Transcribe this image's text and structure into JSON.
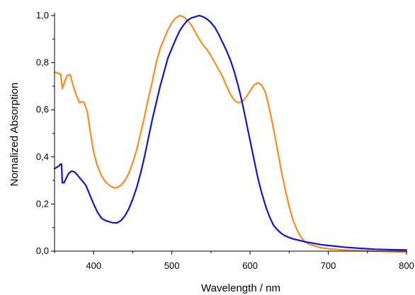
{
  "chart_data": {
    "type": "line",
    "title": "",
    "xlabel": "Wavelength / nm",
    "ylabel": "Nornalized Absorption",
    "xlim": [
      350,
      800
    ],
    "ylim": [
      0.0,
      1.0
    ],
    "x_ticks": [
      400,
      500,
      600,
      700,
      800
    ],
    "x_tick_labels": [
      "400",
      "500",
      "600",
      "700",
      "800"
    ],
    "y_ticks": [
      0.0,
      0.2,
      0.4,
      0.6,
      0.8,
      1.0
    ],
    "y_tick_labels": [
      "0,0",
      "0,2",
      "0,4",
      "0,6",
      "0,8",
      "1,0"
    ],
    "grid": false,
    "legend": "none",
    "series": [
      {
        "color": "#ff8c1a",
        "x": [
          350,
          355,
          358,
          360,
          363,
          366,
          370,
          374,
          378,
          382,
          385,
          388,
          392,
          396,
          400,
          405,
          410,
          415,
          420,
          425,
          430,
          435,
          440,
          445,
          450,
          455,
          460,
          465,
          470,
          475,
          480,
          485,
          490,
          495,
          500,
          505,
          510,
          515,
          520,
          525,
          530,
          535,
          540,
          545,
          550,
          555,
          560,
          565,
          570,
          575,
          580,
          585,
          590,
          595,
          600,
          605,
          610,
          615,
          620,
          625,
          630,
          635,
          640,
          645,
          650,
          655,
          660,
          665,
          670,
          675,
          680,
          685,
          690,
          700,
          720,
          740,
          760,
          780,
          800
        ],
        "y": [
          0.76,
          0.755,
          0.75,
          0.69,
          0.72,
          0.745,
          0.75,
          0.7,
          0.66,
          0.63,
          0.635,
          0.63,
          0.59,
          0.5,
          0.42,
          0.36,
          0.32,
          0.295,
          0.28,
          0.27,
          0.27,
          0.28,
          0.3,
          0.33,
          0.375,
          0.43,
          0.5,
          0.57,
          0.65,
          0.72,
          0.8,
          0.86,
          0.9,
          0.94,
          0.97,
          0.99,
          1.0,
          0.995,
          0.98,
          0.96,
          0.93,
          0.9,
          0.875,
          0.855,
          0.83,
          0.8,
          0.77,
          0.74,
          0.7,
          0.665,
          0.64,
          0.63,
          0.635,
          0.655,
          0.68,
          0.705,
          0.715,
          0.705,
          0.67,
          0.6,
          0.52,
          0.43,
          0.34,
          0.26,
          0.19,
          0.13,
          0.09,
          0.06,
          0.04,
          0.03,
          0.025,
          0.02,
          0.015,
          0.01,
          0.005,
          0.002,
          0.0,
          -0.002,
          -0.004
        ]
      },
      {
        "color": "#1414d2",
        "x": [
          350,
          355,
          358,
          359,
          360,
          362,
          365,
          368,
          372,
          376,
          380,
          385,
          390,
          395,
          400,
          405,
          410,
          415,
          420,
          425,
          430,
          435,
          440,
          445,
          450,
          455,
          460,
          465,
          470,
          475,
          480,
          485,
          490,
          495,
          500,
          505,
          510,
          515,
          520,
          525,
          530,
          535,
          540,
          545,
          550,
          555,
          560,
          565,
          570,
          575,
          580,
          585,
          590,
          595,
          600,
          605,
          610,
          615,
          620,
          625,
          630,
          635,
          640,
          645,
          650,
          655,
          660,
          670,
          680,
          690,
          700,
          720,
          740,
          760,
          780,
          800
        ],
        "y": [
          0.35,
          0.36,
          0.37,
          0.37,
          0.29,
          0.29,
          0.31,
          0.33,
          0.34,
          0.335,
          0.32,
          0.3,
          0.28,
          0.24,
          0.2,
          0.165,
          0.14,
          0.13,
          0.125,
          0.12,
          0.12,
          0.13,
          0.15,
          0.18,
          0.22,
          0.27,
          0.33,
          0.4,
          0.48,
          0.56,
          0.63,
          0.7,
          0.76,
          0.82,
          0.86,
          0.9,
          0.935,
          0.96,
          0.98,
          0.99,
          0.995,
          1.0,
          0.995,
          0.985,
          0.97,
          0.95,
          0.92,
          0.885,
          0.85,
          0.81,
          0.76,
          0.7,
          0.63,
          0.55,
          0.47,
          0.39,
          0.31,
          0.245,
          0.19,
          0.145,
          0.11,
          0.09,
          0.075,
          0.065,
          0.058,
          0.052,
          0.048,
          0.04,
          0.034,
          0.028,
          0.024,
          0.017,
          0.012,
          0.008,
          0.006,
          0.005
        ]
      }
    ]
  }
}
